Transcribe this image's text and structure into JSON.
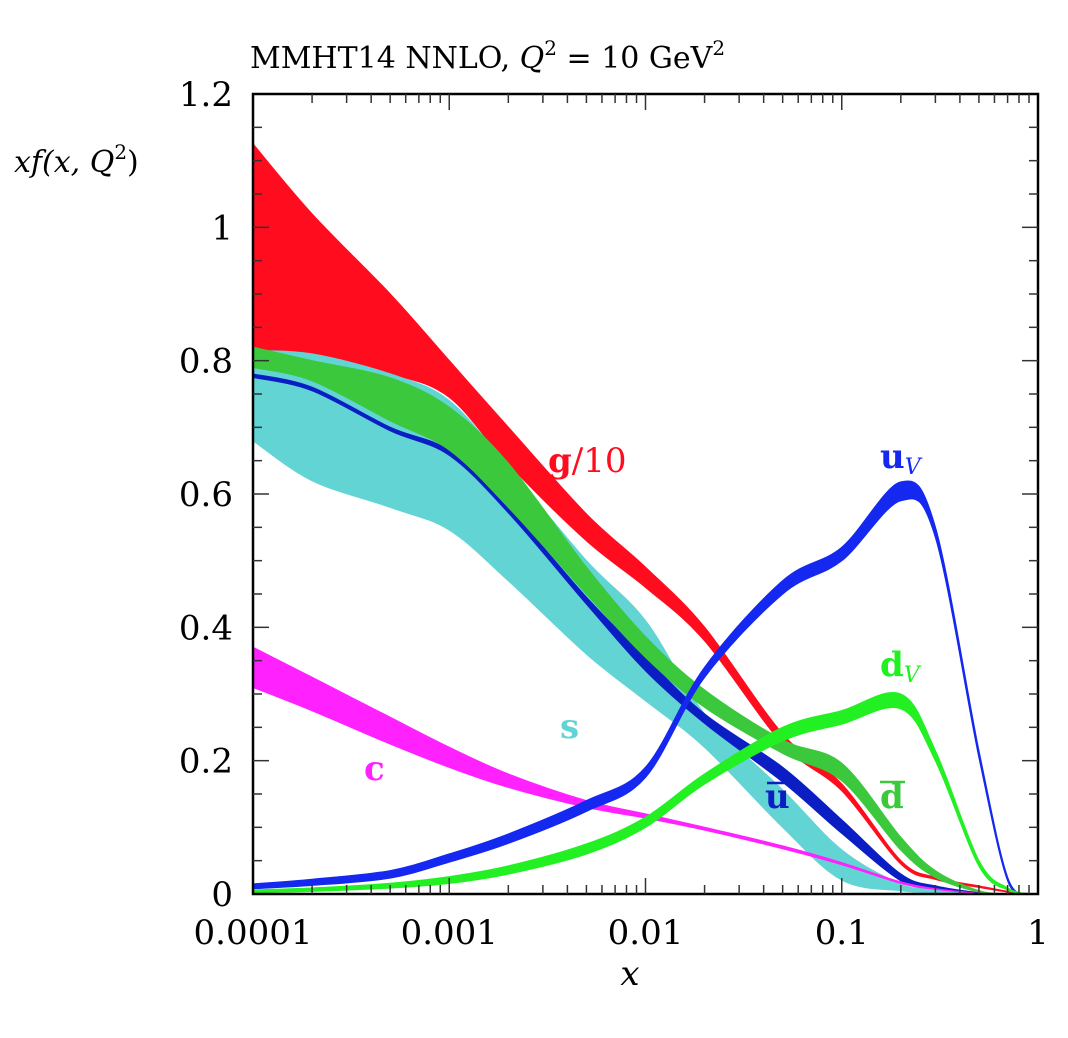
{
  "chart_data": {
    "type": "area",
    "title": "MMHT14 NNLO, Q² = 10 GeV²",
    "title_parts": {
      "main": "MMHT14 NNLO, ",
      "var": "Q",
      "sup": "2",
      "eq": " = 10 GeV",
      "unit_sup": "2"
    },
    "xlabel": "x",
    "ylabel": "xf(x, Q²)",
    "ylabel_parts": {
      "text": "xf(x, Q",
      "sup": "2",
      "close": ")"
    },
    "xscale": "log",
    "xlim": [
      0.0001,
      1
    ],
    "ylim": [
      0,
      1.2
    ],
    "x_ticks": [
      {
        "value": 0.0001,
        "label": "0.0001"
      },
      {
        "value": 0.001,
        "label": "0.001"
      },
      {
        "value": 0.01,
        "label": "0.01"
      },
      {
        "value": 0.1,
        "label": "0.1"
      },
      {
        "value": 1,
        "label": "1"
      }
    ],
    "y_ticks": [
      {
        "value": 0,
        "label": "0"
      },
      {
        "value": 0.2,
        "label": "0.2"
      },
      {
        "value": 0.4,
        "label": "0.4"
      },
      {
        "value": 0.6,
        "label": "0.6"
      },
      {
        "value": 0.8,
        "label": "0.8"
      },
      {
        "value": 1.0,
        "label": "1"
      },
      {
        "value": 1.2,
        "label": "1.2"
      }
    ],
    "grid": false,
    "x": [
      0.0001,
      0.0002,
      0.0005,
      0.001,
      0.002,
      0.005,
      0.01,
      0.02,
      0.05,
      0.1,
      0.2,
      0.3,
      0.5,
      0.7,
      0.9
    ],
    "series": [
      {
        "name": "g/10",
        "label_main": "g",
        "label_rest": "/10",
        "color": "#ff0d1f",
        "upper": [
          1.125,
          1.02,
          0.9,
          0.8,
          0.7,
          0.57,
          0.49,
          0.4,
          0.24,
          0.165,
          0.05,
          0.025,
          0.012,
          0.004,
          0.0
        ],
        "lower": [
          0.815,
          0.8,
          0.78,
          0.745,
          0.645,
          0.53,
          0.46,
          0.38,
          0.225,
          0.155,
          0.045,
          0.022,
          0.01,
          0.003,
          0.0
        ]
      },
      {
        "name": "s",
        "label_main": "s",
        "color": "#62d4d4",
        "upper": [
          0.815,
          0.81,
          0.78,
          0.74,
          0.64,
          0.5,
          0.41,
          0.27,
          0.156,
          0.066,
          0.015,
          0.007,
          0.002,
          0.0,
          0.0
        ],
        "lower": [
          0.68,
          0.62,
          0.58,
          0.546,
          0.47,
          0.36,
          0.29,
          0.22,
          0.1,
          0.021,
          0.005,
          0.002,
          0.0,
          0.0,
          0.0
        ]
      },
      {
        "name": "ubar",
        "label_main": "u",
        "overline": true,
        "color": "#0b1ec4",
        "upper": [
          0.78,
          0.76,
          0.7,
          0.665,
          0.58,
          0.445,
          0.355,
          0.27,
          0.19,
          0.111,
          0.03,
          0.012,
          0.002,
          0.0,
          0.0
        ],
        "lower": [
          0.775,
          0.755,
          0.695,
          0.658,
          0.572,
          0.435,
          0.335,
          0.256,
          0.168,
          0.091,
          0.02,
          0.008,
          0.001,
          0.0,
          0.0
        ]
      },
      {
        "name": "dbar",
        "label_main": "d",
        "overline": true,
        "color": "#3cc83c",
        "upper": [
          0.82,
          0.8,
          0.774,
          0.73,
          0.646,
          0.49,
          0.386,
          0.306,
          0.231,
          0.196,
          0.085,
          0.035,
          0.005,
          0.0,
          0.0
        ],
        "lower": [
          0.79,
          0.77,
          0.71,
          0.666,
          0.58,
          0.45,
          0.355,
          0.28,
          0.211,
          0.17,
          0.066,
          0.025,
          0.003,
          0.0,
          0.0
        ]
      },
      {
        "name": "c",
        "label_main": "c",
        "color": "#ff22ff",
        "upper": [
          0.37,
          0.325,
          0.265,
          0.22,
          0.18,
          0.14,
          0.12,
          0.1,
          0.072,
          0.047,
          0.018,
          0.008,
          0.001,
          0.0,
          0.0
        ],
        "lower": [
          0.31,
          0.275,
          0.225,
          0.19,
          0.16,
          0.13,
          0.114,
          0.096,
          0.068,
          0.044,
          0.016,
          0.007,
          0.001,
          0.0,
          0.0
        ]
      },
      {
        "name": "uV",
        "label_main": "u",
        "label_sub": "V",
        "color": "#1428f0",
        "upper": [
          0.015,
          0.022,
          0.035,
          0.06,
          0.09,
          0.14,
          0.19,
          0.34,
          0.47,
          0.52,
          0.618,
          0.55,
          0.215,
          0.025,
          0.0
        ],
        "lower": [
          0.008,
          0.013,
          0.024,
          0.048,
          0.076,
          0.124,
          0.175,
          0.325,
          0.45,
          0.5,
          0.59,
          0.535,
          0.205,
          0.02,
          0.0
        ]
      },
      {
        "name": "dV",
        "label_main": "d",
        "label_sub": "V",
        "color": "#22f022",
        "upper": [
          0.006,
          0.009,
          0.016,
          0.026,
          0.042,
          0.075,
          0.115,
          0.18,
          0.25,
          0.275,
          0.3,
          0.215,
          0.05,
          0.009,
          0.0
        ],
        "lower": [
          0.002,
          0.004,
          0.009,
          0.016,
          0.03,
          0.06,
          0.1,
          0.165,
          0.23,
          0.255,
          0.278,
          0.2,
          0.042,
          0.006,
          0.0
        ]
      }
    ]
  }
}
